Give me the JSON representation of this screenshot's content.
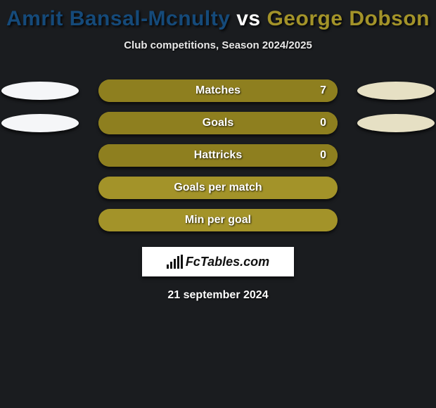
{
  "background_color": "#1a1c1f",
  "header": {
    "player1": "Amrit Bansal-Mcnulty",
    "player1_color": "#154a7a",
    "vs": "vs",
    "player2": "George Dobson",
    "player2_color": "#a39329",
    "subtitle": "Club competitions, Season 2024/2025"
  },
  "colors": {
    "bar_primary": "#a39329",
    "bar_secondary": "#8e7f1f",
    "side_left": "#f5f6f8",
    "side_right": "#e6e0c4"
  },
  "stats": [
    {
      "label": "Matches",
      "value_right": "7",
      "show_sides": true,
      "left_fill_pct": 0,
      "secondary_fill": true
    },
    {
      "label": "Goals",
      "value_right": "0",
      "show_sides": true,
      "left_fill_pct": 0,
      "secondary_fill": true
    },
    {
      "label": "Hattricks",
      "value_right": "0",
      "show_sides": false,
      "left_fill_pct": 0,
      "secondary_fill": true
    },
    {
      "label": "Goals per match",
      "value_right": "",
      "show_sides": false,
      "left_fill_pct": 0,
      "secondary_fill": false
    },
    {
      "label": "Min per goal",
      "value_right": "",
      "show_sides": false,
      "left_fill_pct": 0,
      "secondary_fill": false
    }
  ],
  "brand": {
    "name": "FcTables.com",
    "icon": "bar-chart-icon"
  },
  "footer_date": "21 september 2024"
}
